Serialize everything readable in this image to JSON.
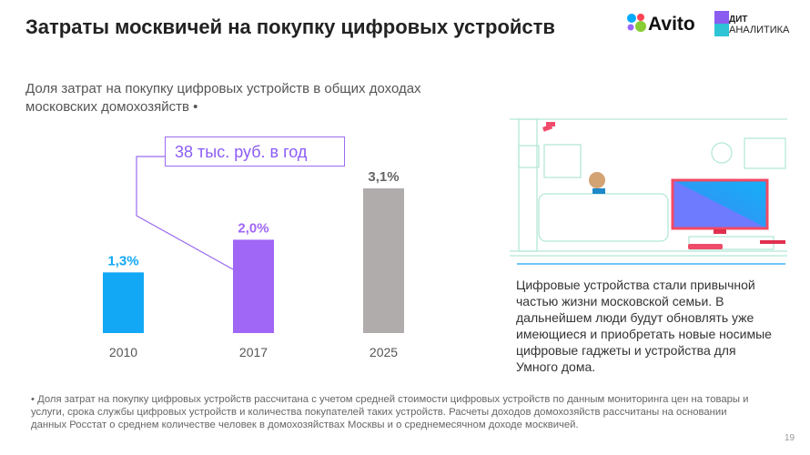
{
  "header": {
    "title": "Затраты москвичей на покупку цифровых устройств",
    "logo_avito": "Avito",
    "logo_dit_1": "ДИТ",
    "logo_dit_2": "АНАЛИТИКА"
  },
  "subtitle": "Доля затрат на покупку цифровых устройств в общих доходах московских домохозяйств",
  "subtitle_marker": "•",
  "callout": "38 тыс. руб. в год",
  "chart_data": {
    "type": "bar",
    "categories": [
      "2010",
      "2017",
      "2025"
    ],
    "values": [
      1.3,
      2.0,
      3.1
    ],
    "labels": [
      "1,3%",
      "2,0%",
      "3,1%"
    ],
    "colors": [
      "#12a8f5",
      "#a066f5",
      "#b0acac"
    ],
    "ylim": [
      0,
      3.5
    ],
    "title": "",
    "xlabel": "",
    "ylabel": ""
  },
  "description": "Цифровые устройства стали привычной частью жизни московской семьи. В дальнейшем люди будут обновлять уже имеющиеся и приобретать новые носимые цифровые гаджеты и устройства для Умного дома.",
  "footnote": "Доля затрат на покупку цифровых устройств рассчитана с учетом средней стоимости цифровых устройств по данным мониторинга цен на товары и услуги, срока службы цифровых устройств и количества покупателей таких устройств. Расчеты доходов домохозяйств рассчитаны на основании данных Росстат о среднем количестве человек в домохозяйствах Москвы и о среднемесячном доходе москвичей.",
  "footnote_marker": "•",
  "page_number": "19"
}
